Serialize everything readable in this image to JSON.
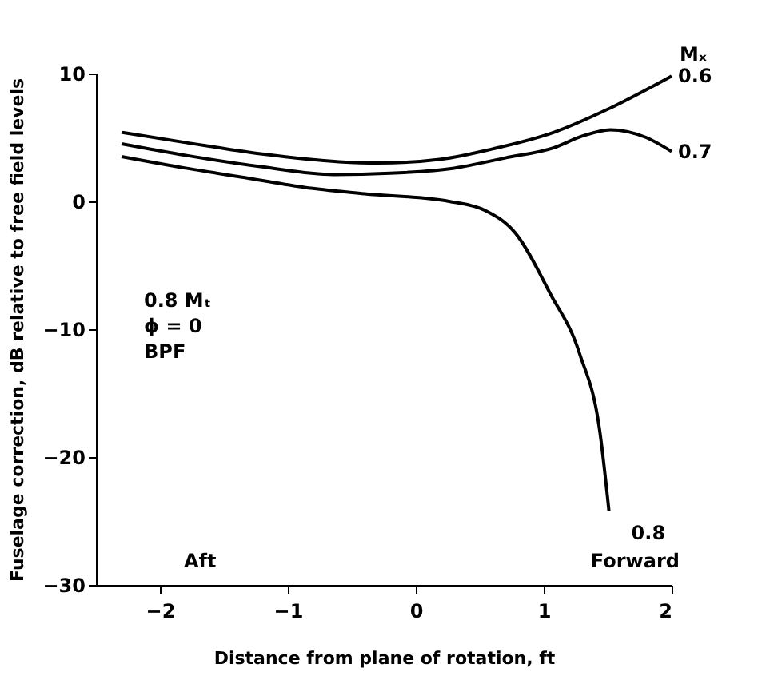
{
  "chart_data": {
    "type": "line",
    "xlabel": "Distance from plane of rotation, ft",
    "ylabel": "Fuselage correction, dB relative to free field levels",
    "legend_title": "Mₓ",
    "legend": false,
    "grid": false,
    "marker": "none",
    "line_style": "solid",
    "xlim": [
      -2.5,
      2
    ],
    "xticks": [
      -2,
      -1,
      0,
      1,
      2
    ],
    "ylim": [
      -30,
      10
    ],
    "yticks": [
      -30,
      -20,
      -10,
      0,
      10
    ],
    "series": [
      {
        "name": "0.6",
        "color": "#000000",
        "x": [
          -2.3,
          -1.8,
          -1.2,
          -0.6,
          -0.3,
          0.2,
          0.6,
          1.08,
          1.5,
          2.0
        ],
        "values": [
          5.4,
          4.6,
          3.7,
          3.1,
          3.0,
          3.3,
          4.1,
          5.4,
          7.2,
          9.8
        ]
      },
      {
        "name": "0.7",
        "color": "#000000",
        "x": [
          -2.3,
          -1.8,
          -1.2,
          -0.64,
          -0.2,
          0.3,
          0.7,
          1.08,
          1.3,
          1.52,
          1.8,
          2.0
        ],
        "values": [
          4.5,
          3.6,
          2.7,
          2.1,
          2.2,
          2.6,
          3.4,
          4.2,
          5.1,
          5.6,
          5.0,
          3.9
        ]
      },
      {
        "name": "0.8",
        "color": "#000000",
        "x": [
          -2.3,
          -1.8,
          -1.3,
          -0.87,
          -0.4,
          0.26,
          0.54,
          0.78,
          1.05,
          1.28,
          1.44,
          1.51
        ],
        "values": [
          3.5,
          2.6,
          1.8,
          1.1,
          0.6,
          0.0,
          -0.7,
          -2.5,
          -7.2,
          -11.9,
          -18.1,
          -24.2
        ]
      }
    ],
    "annotations": [
      "0.8 Mₜ",
      "ϕ = 0",
      "BPF",
      "Aft",
      "Forward"
    ]
  }
}
